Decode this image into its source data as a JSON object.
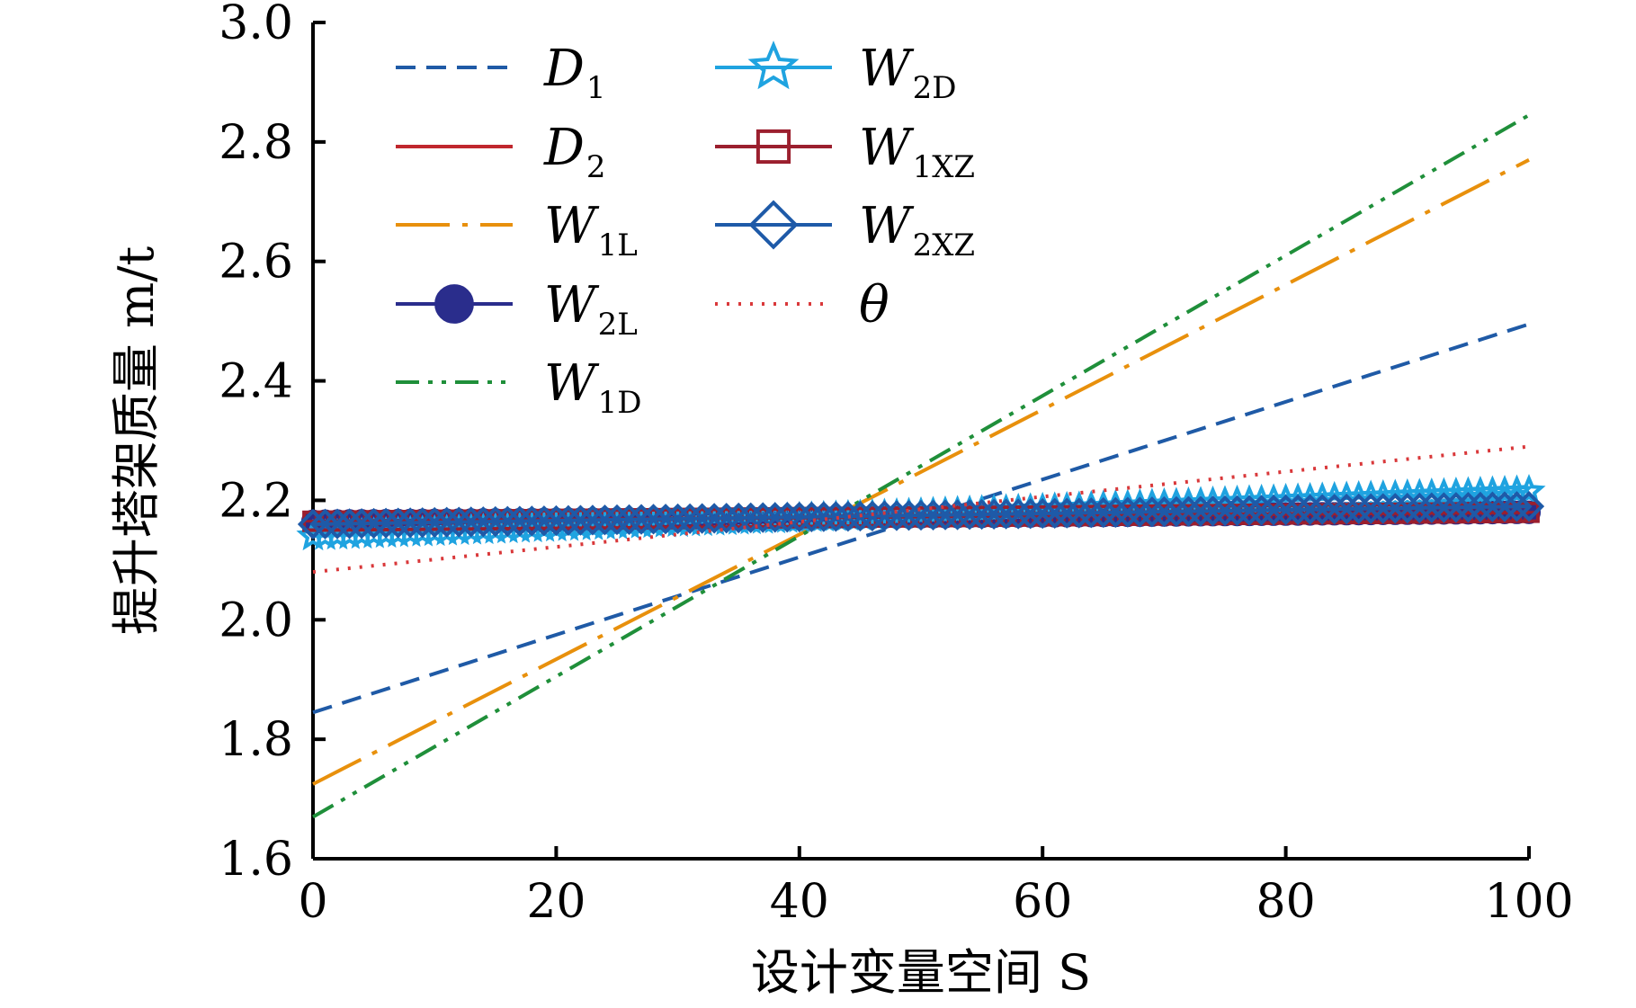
{
  "chart_data": {
    "type": "line",
    "title": "",
    "xlabel": "设计变量空间 S",
    "ylabel": "提升塔架质量 m/t",
    "xlim": [
      0,
      100
    ],
    "ylim": [
      1.6,
      3.0
    ],
    "x_ticks": [
      "0",
      "20",
      "40",
      "60",
      "80",
      "100"
    ],
    "y_ticks": [
      "1.6",
      "1.8",
      "2.0",
      "2.2",
      "2.4",
      "2.6",
      "2.8",
      "3.0"
    ],
    "grid": false,
    "legend_position": "top-left",
    "x": [
      0,
      100
    ],
    "series": [
      {
        "name": "D1",
        "label_main": "D",
        "label_sub": "1",
        "color": "#1f5aa6",
        "style": "dashed",
        "marker": "none",
        "values": [
          1.845,
          2.495
        ]
      },
      {
        "name": "D2",
        "label_main": "D",
        "label_sub": "2",
        "color": "#c0272d",
        "style": "solid",
        "marker": "none",
        "values": [
          2.165,
          2.185
        ]
      },
      {
        "name": "W1L",
        "label_main": "W",
        "label_sub": "1L",
        "color": "#e8900c",
        "style": "dashdot-long",
        "marker": "none",
        "values": [
          1.725,
          2.77
        ]
      },
      {
        "name": "W2L",
        "label_main": "W",
        "label_sub": "2L",
        "color": "#2a2d8c",
        "style": "solid",
        "marker": "circle",
        "values": [
          2.165,
          2.18
        ]
      },
      {
        "name": "W1D",
        "label_main": "W",
        "label_sub": "1D",
        "color": "#1f8f3a",
        "style": "dashdotdot",
        "marker": "none",
        "values": [
          1.67,
          2.845
        ]
      },
      {
        "name": "W2D",
        "label_main": "W",
        "label_sub": "2D",
        "color": "#1fa3e0",
        "style": "solid",
        "marker": "star",
        "values": [
          2.14,
          2.215
        ]
      },
      {
        "name": "W1XZ",
        "label_main": "W",
        "label_sub": "1XZ",
        "color": "#9b1f2e",
        "style": "solid",
        "marker": "square",
        "values": [
          2.165,
          2.18
        ]
      },
      {
        "name": "W2XZ",
        "label_main": "W",
        "label_sub": "2XZ",
        "color": "#1e5aa8",
        "style": "solid",
        "marker": "diamond",
        "values": [
          2.16,
          2.19
        ]
      },
      {
        "name": "θ",
        "label_main": "θ",
        "label_sub": "",
        "color": "#d9383a",
        "style": "dotted",
        "marker": "none",
        "values": [
          2.08,
          2.29
        ]
      }
    ]
  }
}
